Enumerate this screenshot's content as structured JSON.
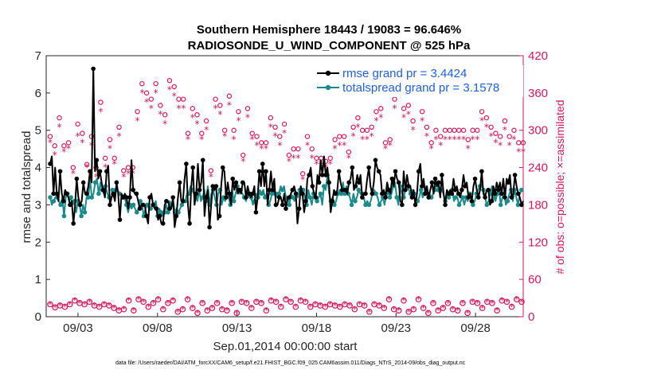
{
  "chart_data": {
    "type": "line",
    "title_line1": "Southern Hemisphere 18443 / 19083 = 96.646%",
    "title_line2": "RADIOSONDE_U_WIND_COMPONENT @ 525 hPa",
    "xlabel": "Sep.01,2014 00:00:00 start",
    "ylabel_left": "rmse and totalspread",
    "ylabel_right": "# of obs: o=possible; ×=assimilated",
    "xlim": [
      1.0,
      31.0
    ],
    "ylim_left": [
      0,
      7
    ],
    "ylim_right": [
      0,
      420
    ],
    "grid": false,
    "legend_position": "top-right",
    "x_ticks": [
      {
        "value": 3,
        "label": "09/03"
      },
      {
        "value": 8,
        "label": "09/08"
      },
      {
        "value": 13,
        "label": "09/13"
      },
      {
        "value": 18,
        "label": "09/18"
      },
      {
        "value": 23,
        "label": "09/23"
      },
      {
        "value": 28,
        "label": "09/28"
      }
    ],
    "y_ticks_left": [
      "0",
      "1",
      "2",
      "3",
      "4",
      "5",
      "6",
      "7"
    ],
    "y_ticks_right": [
      "0",
      "60",
      "120",
      "180",
      "240",
      "300",
      "360",
      "420"
    ],
    "series": [
      {
        "name": "rmse grand pr = 3.4424",
        "color": "#000000",
        "axis": "left",
        "marker": "circle",
        "values": [
          4.1,
          4.3,
          3.3,
          4.0,
          3.3,
          3.1,
          3.9,
          3.3,
          3.1,
          3.4,
          3.3,
          3.2,
          3.0,
          3.1,
          2.5,
          3.0,
          3.7,
          3.2,
          3.0,
          3.1,
          3.6,
          3.3,
          3.3,
          3.5,
          3.9,
          3.6,
          6.65,
          3.9,
          4.2,
          3.7,
          3.9,
          3.6,
          3.4,
          3.2,
          3.9,
          4.05,
          3.0,
          3.2,
          3.3,
          3.1,
          3.6,
          3.3,
          2.6,
          3.3,
          3.2,
          3.3,
          3.2,
          2.9,
          3.2,
          4.2,
          3.4,
          3.3,
          3.3,
          3.1,
          2.9,
          3.0,
          3.0,
          3.0,
          2.7,
          2.5,
          3.2,
          3.3,
          3.0,
          2.9,
          2.9,
          2.6,
          2.7,
          2.5,
          2.5,
          3.0,
          3.1,
          3.1,
          2.9,
          2.9,
          3.2,
          2.4,
          2.7,
          3.2,
          3.6,
          3.1,
          3.1,
          3.7,
          4.1,
          3.0,
          2.5,
          3.5,
          4.0,
          3.0,
          3.3,
          4.1,
          3.4,
          3.6,
          4.2,
          2.7,
          3.2,
          3.4,
          2.4,
          3.0,
          3.5,
          3.4,
          3.5,
          2.6,
          2.7,
          3.5,
          4.0,
          3.9,
          3.2,
          3.6,
          3.3,
          3.0,
          3.7,
          3.4,
          3.6,
          3.3,
          3.4,
          3.3,
          3.6,
          3.6,
          3.2,
          3.5,
          3.3,
          3.2,
          3.3,
          3.5,
          2.8,
          3.2,
          3.9,
          3.5,
          4.1,
          3.5,
          3.9,
          3.0,
          3.4,
          3.9,
          3.4,
          3.7,
          3.0,
          3.0,
          3.2,
          3.2,
          3.0,
          3.3,
          2.9,
          3.2,
          3.2,
          3.3,
          3.4,
          3.5,
          3.3,
          2.5,
          2.9,
          3.5,
          3.3,
          2.8,
          3.1,
          3.7,
          3.8,
          4.0,
          3.5,
          3.3,
          3.2,
          3.8,
          3.6,
          4.2,
          3.8,
          4.3,
          3.8,
          4.0,
          3.6,
          2.8,
          3.1,
          3.4,
          3.3,
          3.4,
          3.9,
          3.6,
          3.4,
          3.4,
          3.4,
          3.3,
          3.6,
          3.7,
          4.0,
          3.4,
          3.5,
          3.8,
          3.6,
          3.8,
          3.2,
          3.3,
          3.3,
          3.7,
          4.0,
          3.5,
          3.3,
          3.6,
          4.2,
          4.0,
          3.9,
          3.8,
          3.3,
          3.4,
          3.2,
          3.6,
          3.4,
          3.3,
          3.7,
          3.5,
          3.9,
          3.7,
          3.6,
          3.1,
          3.0,
          3.9,
          3.4,
          3.8,
          3.5,
          3.5,
          3.2,
          3.4,
          3.0,
          3.3,
          3.9,
          4.1,
          3.5,
          3.7,
          3.3,
          3.5,
          3.2,
          3.4,
          3.6,
          3.3,
          3.7,
          3.5,
          3.6,
          3.2,
          3.8,
          3.3,
          3.0,
          3.4,
          3.3,
          3.4,
          3.3,
          3.7,
          3.4,
          3.5,
          3.3,
          3.2,
          3.4,
          3.8,
          3.5,
          3.6,
          3.2,
          3.3,
          3.1,
          3.5,
          3.7,
          3.4,
          3.2,
          3.4,
          3.9,
          3.3,
          3.2,
          3.4,
          3.4,
          3.0,
          3.1,
          3.5,
          3.3,
          3.6,
          3.4,
          3.6,
          3.3,
          3.7,
          3.2,
          3.7,
          3.6,
          3.8,
          3.2,
          3.3,
          3.8,
          3.5,
          3.3,
          3.2,
          3.0,
          3.1
        ]
      },
      {
        "name": "totalspread grand pr = 3.1578",
        "color": "#1a8a8a",
        "axis": "left",
        "marker": "circle",
        "values": [
          3.2,
          3.0,
          3.1,
          3.2,
          3.2,
          3.1,
          3.0,
          3.2,
          2.7,
          3.2,
          3.3,
          3.1,
          3.2,
          3.0,
          3.1,
          2.8,
          3.1,
          3.0,
          2.7,
          3.0,
          2.8,
          3.2,
          3.2,
          3.7,
          3.2,
          3.3,
          3.6,
          3.7,
          3.3,
          3.6,
          3.4,
          3.3,
          3.5,
          3.3,
          3.2,
          3.1,
          3.4,
          3.3,
          3.4,
          3.4,
          3.3,
          3.3,
          3.2,
          3.2,
          3.0,
          2.8,
          3.0,
          2.9,
          3.0,
          2.9,
          2.8,
          2.9,
          3.1,
          3.0,
          2.7,
          2.9,
          3.0,
          2.9,
          2.9,
          3.0,
          3.0,
          3.1,
          2.7,
          2.9,
          2.8,
          2.7,
          2.8,
          3.0,
          2.8,
          3.1,
          3.0,
          3.1,
          2.8,
          2.9,
          2.8,
          2.9,
          3.0,
          3.1,
          3.1,
          3.3,
          3.3,
          3.5,
          3.4,
          3.3,
          3.2,
          3.1,
          3.4,
          3.1,
          3.2,
          3.4,
          3.1,
          3.5,
          3.0,
          3.3,
          3.4,
          3.2,
          3.0,
          3.3,
          3.4,
          3.0,
          3.2,
          3.1,
          3.3,
          3.2,
          3.0,
          3.4,
          3.1,
          3.3,
          3.5,
          3.3,
          3.4,
          3.3,
          3.2,
          3.1,
          3.3,
          3.2,
          3.2,
          3.0,
          3.1,
          3.3,
          3.2,
          3.4,
          3.3,
          3.4,
          3.2,
          3.3,
          3.0,
          3.1,
          3.3,
          3.4,
          3.3,
          3.2,
          3.3,
          3.5,
          3.4,
          3.5,
          3.2,
          3.2,
          3.0,
          3.3,
          3.2,
          3.1,
          3.3,
          3.2,
          3.4,
          3.3,
          3.4,
          3.2,
          3.0,
          3.4,
          3.2,
          3.0,
          3.3,
          3.3,
          3.1,
          3.2,
          3.3,
          3.0,
          3.5,
          3.4,
          3.8,
          3.3,
          3.1,
          3.2,
          3.0,
          3.1,
          3.3,
          3.4,
          3.3,
          3.6,
          3.3,
          3.5,
          3.3,
          3.2,
          3.0,
          3.3,
          3.1,
          3.2,
          3.4,
          3.3,
          3.3,
          3.2,
          3.0,
          3.1,
          3.0,
          3.1,
          3.3,
          3.4,
          3.3,
          3.2,
          3.0,
          3.1,
          3.2,
          3.0,
          3.3,
          3.4,
          3.2,
          3.3,
          3.5,
          3.6,
          3.2,
          3.0,
          3.5,
          3.3,
          3.2,
          3.4,
          3.5,
          3.4,
          3.3,
          3.4,
          3.3,
          3.0,
          3.1,
          3.2,
          3.4,
          3.2,
          3.3,
          3.5,
          3.3,
          3.3,
          3.2,
          3.3,
          3.4,
          3.6,
          3.4,
          3.3,
          3.4,
          3.3,
          3.1,
          3.4,
          3.2,
          3.3,
          3.4,
          3.1,
          3.2,
          3.2,
          3.0,
          3.1,
          3.2,
          3.0,
          3.2,
          3.1,
          3.3,
          3.2,
          3.0,
          3.1,
          3.3,
          3.4,
          3.5,
          3.6,
          3.4,
          3.2,
          3.0,
          3.1,
          3.3,
          3.5,
          3.2,
          3.1,
          3.3,
          3.5,
          3.0,
          3.2,
          3.3,
          3.0,
          3.1,
          3.3,
          3.4,
          3.1,
          3.4,
          3.2,
          3.0,
          3.3,
          3.4,
          3.4
        ]
      },
      {
        "name": "obs possible",
        "color": "#d4175a",
        "axis": "right",
        "marker": "o",
        "values": [
          20,
          10,
          25,
          15,
          5,
          22,
          18,
          12,
          28,
          16,
          8,
          24,
          20,
          14,
          6,
          26,
          18,
          10,
          22,
          30,
          12,
          20,
          16,
          8,
          24,
          14,
          28,
          18,
          10,
          22,
          16,
          6,
          26,
          20,
          12,
          24,
          18,
          8,
          22,
          14,
          28,
          16,
          10,
          20,
          24,
          12,
          18,
          6,
          26,
          16,
          20,
          10,
          22,
          14,
          28,
          18,
          8,
          24,
          12,
          20,
          16,
          26,
          10,
          22,
          18,
          14,
          28,
          6,
          20,
          12,
          24,
          16,
          22,
          18,
          10,
          26,
          14,
          20,
          8,
          24,
          18,
          12,
          22,
          16,
          28,
          10,
          20,
          14,
          26,
          18,
          6,
          24,
          12,
          22,
          16,
          20,
          10,
          28,
          18,
          14,
          24,
          8,
          22,
          16,
          20,
          12,
          26,
          18,
          10,
          24,
          14,
          22,
          16,
          28,
          6,
          20,
          12,
          24,
          18,
          10,
          22,
          16,
          26,
          14,
          20,
          8,
          24,
          18,
          12,
          22,
          16,
          28,
          10,
          20,
          14,
          26,
          18,
          6,
          24,
          12,
          22,
          16,
          20,
          10,
          28,
          18,
          14,
          24,
          8,
          22,
          16,
          20,
          12,
          26,
          18,
          10,
          24,
          14,
          22,
          16,
          28,
          6,
          20,
          12,
          24,
          18,
          10,
          22,
          16,
          26,
          14,
          20,
          8,
          24,
          18,
          12,
          22,
          16,
          28,
          10,
          20,
          14,
          26,
          18,
          6,
          24,
          12,
          22,
          16,
          20,
          10,
          28,
          18,
          14,
          24,
          8,
          22,
          16,
          20,
          12,
          26,
          18,
          10,
          24,
          14,
          22,
          16,
          28,
          6,
          20,
          12,
          24,
          18,
          10,
          22,
          16,
          26,
          14,
          20,
          8,
          24,
          18,
          12,
          22,
          16,
          28,
          10,
          20,
          14,
          26,
          18,
          6,
          24,
          12,
          22,
          16,
          20,
          10,
          28,
          18,
          14,
          24,
          8,
          22,
          16,
          20,
          12,
          26,
          18,
          10,
          24,
          14,
          22,
          16,
          28,
          6,
          20,
          12,
          24,
          18,
          10,
          22,
          16,
          26,
          14,
          20,
          8,
          24,
          18,
          12,
          22,
          16,
          28,
          10,
          20,
          14,
          26,
          18,
          6,
          24,
          12,
          22,
          16,
          20,
          10,
          28,
          18,
          14,
          24,
          8
        ]
      }
    ],
    "obs_high": {
      "possible": [
        290,
        275,
        320,
        275,
        280,
        240,
        310,
        295,
        245,
        290,
        240,
        345,
        255,
        285,
        255,
        305,
        235,
        240,
        240,
        330,
        375,
        360,
        350,
        375,
        340,
        325,
        380,
        370,
        350,
        350,
        295,
        335,
        325,
        295,
        315,
        235,
        350,
        340,
        300,
        355,
        300,
        330,
        260,
        335,
        295,
        290,
        280,
        280,
        320,
        305,
        290,
        310,
        260,
        270,
        270,
        230,
        290,
        270,
        255,
        255,
        250,
        255,
        285,
        290,
        290,
        265,
        305,
        320,
        300,
        300,
        305,
        330,
        335,
        280,
        285,
        350,
        375,
        335,
        340,
        315,
        380,
        330,
        305,
        280,
        300,
        290,
        300,
        300,
        300,
        300,
        300,
        285,
        300,
        300,
        330,
        320,
        305,
        295,
        290,
        315,
        290,
        300,
        280,
        280
      ],
      "assimilated": [
        280,
        260,
        305,
        265,
        270,
        230,
        290,
        280,
        240,
        275,
        225,
        330,
        240,
        270,
        245,
        290,
        225,
        230,
        230,
        315,
        360,
        345,
        335,
        360,
        325,
        310,
        365,
        355,
        335,
        335,
        285,
        320,
        310,
        285,
        300,
        225,
        335,
        325,
        290,
        340,
        285,
        315,
        250,
        320,
        285,
        275,
        270,
        270,
        305,
        290,
        275,
        295,
        250,
        255,
        255,
        220,
        275,
        255,
        245,
        245,
        240,
        245,
        270,
        275,
        275,
        255,
        290,
        305,
        285,
        285,
        290,
        315,
        320,
        270,
        275,
        335,
        360,
        320,
        325,
        300,
        365,
        315,
        290,
        270,
        285,
        275,
        285,
        285,
        285,
        285,
        285,
        270,
        285,
        285,
        315,
        305,
        290,
        280,
        275,
        300,
        275,
        285,
        265,
        265
      ]
    },
    "legend": [
      {
        "label": "rmse grand pr = 3.4424",
        "color": "#000000"
      },
      {
        "label": "totalspread grand pr = 3.1578",
        "color": "#1a8a8a"
      }
    ],
    "footer": "data file: /Users/raeder/DAI/ATM_forcXX/CAM6_setup/f.e21.FHIST_BGC.f09_025.CAM6assim.011/Diags_NTrS_2014-09/obs_diag_output.nc"
  }
}
